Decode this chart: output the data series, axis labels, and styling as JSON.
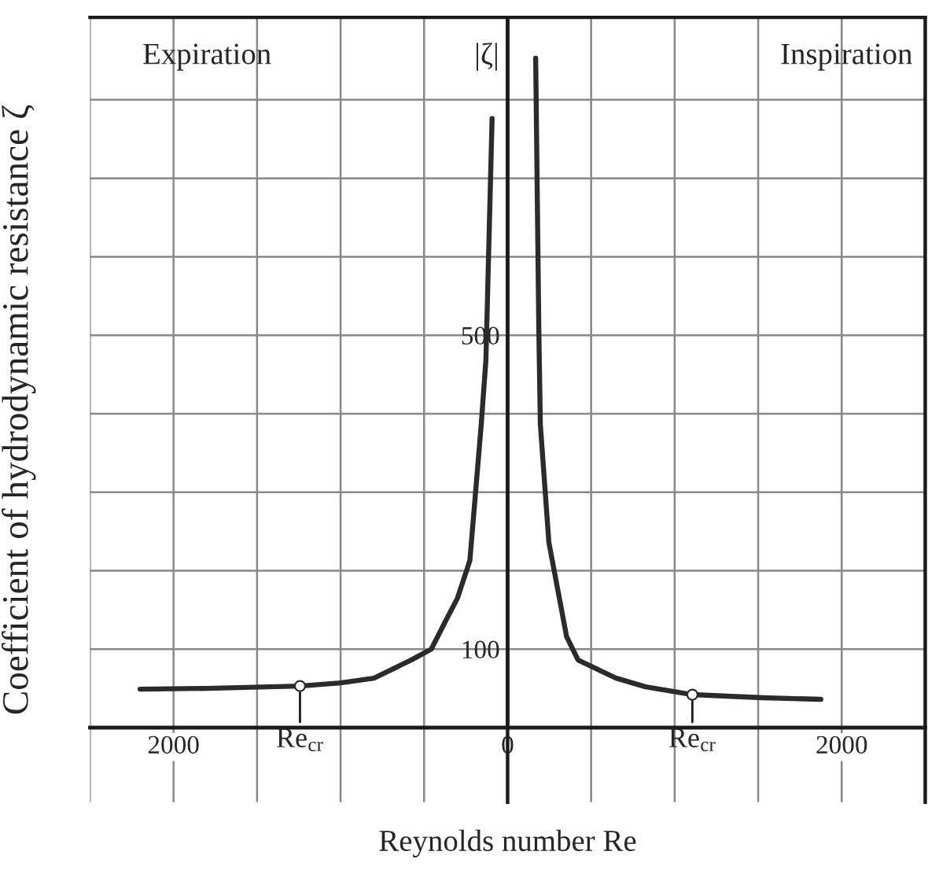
{
  "chart_data": {
    "type": "line",
    "xlabel": "Reynolds number Re",
    "ylabel": "Coefficient of hydrodynamic resistance ζ",
    "annotations": [
      "Expiration",
      "Inspiration",
      "|ζ|",
      {
        "text": "Re$_{cr}$",
        "x": -1243,
        "y": 53
      },
      {
        "text": "Re$_{cr}$",
        "x": 1106,
        "y": 42
      }
    ],
    "series": [
      {
        "color": "#2b2b2b",
        "x": [
          -2200,
          -1800,
          -1243,
          -1000,
          -800,
          -578,
          -457,
          -366,
          -300,
          -226,
          -158,
          -130,
          -93
        ],
        "values": [
          49,
          50,
          53,
          57,
          63,
          86,
          100,
          138,
          165,
          213,
          386,
          468,
          776
        ]
      },
      {
        "color": "#2b2b2b",
        "x": [
          168,
          187,
          196,
          247,
          353,
          422,
          650,
          826,
          1106,
          1527,
          1875
        ],
        "values": [
          853,
          505,
          386,
          236,
          116,
          86,
          63,
          52,
          42,
          38,
          36
        ]
      },
      {
        "type": "scatter",
        "color": "#ffffff",
        "marker": "circle",
        "x": [
          -1243,
          1106
        ],
        "values": [
          53,
          42
        ]
      }
    ],
    "xlim": [
      -2500,
      2500
    ],
    "ylim": [
      -95,
      905
    ],
    "xticks": [
      {
        "value": -2500,
        "label": null
      },
      {
        "value": -2000,
        "label": "2000"
      },
      {
        "value": -1500,
        "label": null
      },
      {
        "value": -1000,
        "label": null
      },
      {
        "value": -500,
        "label": null
      },
      0,
      {
        "value": 500,
        "label": null
      },
      {
        "value": 1000,
        "label": null
      },
      {
        "value": 1500,
        "label": null
      },
      {
        "value": 2000,
        "label": "2000"
      }
    ],
    "yticks": [
      100,
      {
        "value": 200,
        "label": null
      },
      {
        "value": 300,
        "label": null
      },
      {
        "value": 400,
        "label": null
      },
      500,
      {
        "value": 600,
        "label": null
      },
      {
        "value": 700,
        "label": null
      },
      {
        "value": 800,
        "label": null
      }
    ],
    "grid": true,
    "legend": false
  }
}
